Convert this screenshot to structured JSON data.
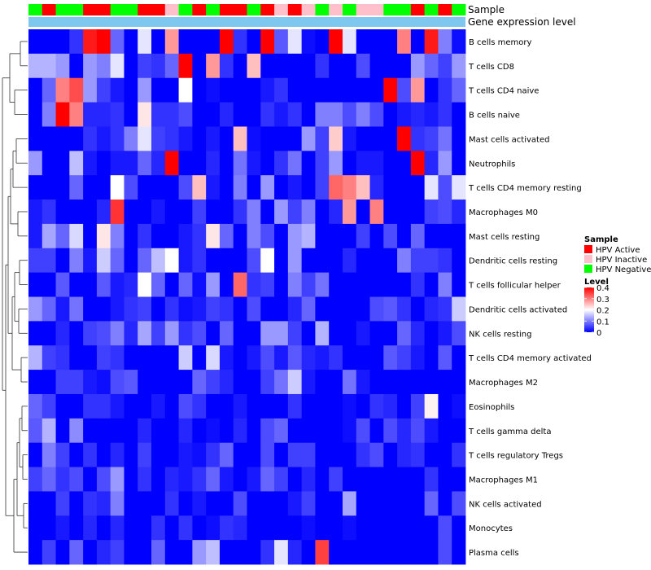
{
  "chart_data": {
    "type": "heatmap",
    "annotation_titles": [
      "Sample",
      "Gene expression level"
    ],
    "sample_legend": {
      "title": "Sample",
      "entries": [
        {
          "label": "HPV Active",
          "color": "#ff0000"
        },
        {
          "label": "HPV Inactive",
          "color": "#ffc0cb"
        },
        {
          "label": "HPV Negative",
          "color": "#00ff00"
        }
      ]
    },
    "level_legend": {
      "title": "Level",
      "ticks": [
        "0.4",
        "0.3",
        "0.2",
        "0.1",
        "0"
      ],
      "range": [
        0,
        0.4
      ],
      "colors": [
        "#0000ff",
        "#ffffff",
        "#ff0000"
      ]
    },
    "sample_groups": [
      "G",
      "R",
      "G",
      "G",
      "R",
      "R",
      "G",
      "G",
      "R",
      "R",
      "P",
      "G",
      "R",
      "G",
      "R",
      "R",
      "G",
      "R",
      "P",
      "R",
      "P",
      "G",
      "P",
      "G",
      "P",
      "P",
      "G",
      "G",
      "R",
      "G",
      "R",
      "G"
    ],
    "group_colors": {
      "R": "#ff0000",
      "P": "#ffc0cb",
      "G": "#00ff00"
    },
    "annotation_bar_color": "#7ec8f0",
    "cell_types": [
      "B cells memory",
      "T cells CD8",
      "T cells CD4 naive",
      "B cells naive",
      "Mast cells activated",
      "Neutrophils",
      "T cells CD4 memory resting",
      "Macrophages M0",
      "Mast cells resting",
      "Dendritic cells resting",
      "T cells follicular helper",
      "Dendritic cells activated",
      "NK cells resting",
      "T cells CD4 memory activated",
      "Macrophages M2",
      "Eosinophils",
      "T cells gamma delta",
      "T cells regulatory  Tregs",
      "Macrophages M1",
      "NK cells activated",
      "Monocytes",
      "Plasma cells"
    ],
    "values": [
      [
        0,
        0,
        0,
        0.04,
        0.38,
        0.4,
        0.08,
        0,
        0.18,
        0,
        0.28,
        0,
        0,
        0,
        0.4,
        0.04,
        0,
        0.4,
        0.07,
        0.18,
        0.01,
        0,
        0.4,
        0.18,
        0,
        0,
        0,
        0.3,
        0,
        0.38,
        0.1,
        0.01
      ],
      [
        0.14,
        0.14,
        0.12,
        0,
        0.12,
        0.1,
        0.18,
        0,
        0.05,
        0.04,
        0.08,
        0.4,
        0,
        0.28,
        0.04,
        0,
        0.25,
        0,
        0,
        0,
        0,
        0.04,
        0,
        0,
        0.06,
        0,
        0,
        0,
        0.12,
        0.08,
        0.05,
        0.12
      ],
      [
        0,
        0.08,
        0.3,
        0.34,
        0.12,
        0.05,
        0.02,
        0,
        0.12,
        0,
        0,
        0.2,
        0,
        0.01,
        0,
        0,
        0,
        0.02,
        0.04,
        0,
        0,
        0,
        0,
        0,
        0,
        0,
        0.4,
        0.06,
        0.28,
        0,
        0.04,
        0.08
      ],
      [
        0,
        0.1,
        0.4,
        0.3,
        0.03,
        0.03,
        0.04,
        0,
        0.22,
        0.04,
        0.04,
        0.06,
        0,
        0,
        0.03,
        0,
        0,
        0.04,
        0.02,
        0.04,
        0,
        0.1,
        0.1,
        0.06,
        0.1,
        0.06,
        0,
        0.02,
        0.03,
        0.02,
        0.04,
        0
      ],
      [
        0,
        0,
        0,
        0,
        0.04,
        0.02,
        0.04,
        0.1,
        0.18,
        0.05,
        0.04,
        0.02,
        0,
        0.02,
        0,
        0.25,
        0.01,
        0,
        0,
        0,
        0.12,
        0.05,
        0.24,
        0.02,
        0,
        0,
        0,
        0.4,
        0.04,
        0.05,
        0.09,
        0
      ],
      [
        0.12,
        0,
        0,
        0.15,
        0.02,
        0,
        0.02,
        0.02,
        0.08,
        0.03,
        0.4,
        0,
        0,
        0.03,
        0,
        0.09,
        0.02,
        0,
        0.04,
        0.09,
        0,
        0.05,
        0.12,
        0,
        0.02,
        0.02,
        0,
        0,
        0.4,
        0.03,
        0.12,
        0
      ],
      [
        0,
        0,
        0,
        0.08,
        0,
        0,
        0.2,
        0.06,
        0,
        0,
        0,
        0.06,
        0.25,
        0.02,
        0,
        0.1,
        0,
        0.12,
        0,
        0.02,
        0,
        0.05,
        0.32,
        0.3,
        0.25,
        0.03,
        0,
        0,
        0,
        0.18,
        0.06,
        0.18
      ],
      [
        0.02,
        0.04,
        0,
        0,
        0,
        0.03,
        0.36,
        0,
        0,
        0.02,
        0,
        0,
        0.05,
        0,
        0,
        0.04,
        0.1,
        0,
        0.12,
        0.05,
        0.1,
        0,
        0.03,
        0.28,
        0,
        0.3,
        0,
        0,
        0,
        0.05,
        0.06,
        0.03
      ],
      [
        0.02,
        0.13,
        0.08,
        0.17,
        0,
        0.22,
        0.1,
        0,
        0.04,
        0,
        0,
        0.02,
        0.04,
        0.22,
        0.08,
        0,
        0.1,
        0.06,
        0,
        0.12,
        0.14,
        0,
        0,
        0,
        0.05,
        0,
        0.06,
        0,
        0.08,
        0,
        0,
        0
      ],
      [
        0.05,
        0.05,
        0,
        0.1,
        0.02,
        0.16,
        0.08,
        0,
        0.08,
        0.15,
        0.2,
        0.02,
        0.04,
        0,
        0,
        0,
        0.06,
        0.2,
        0,
        0.12,
        0,
        0,
        0,
        0.03,
        0,
        0,
        0,
        0.1,
        0.05,
        0.05,
        0.04,
        0
      ],
      [
        0,
        0,
        0.07,
        0,
        0,
        0.07,
        0.02,
        0.03,
        0.2,
        0.08,
        0,
        0.08,
        0.01,
        0.12,
        0,
        0.32,
        0.04,
        0.05,
        0,
        0.1,
        0.05,
        0.09,
        0,
        0,
        0,
        0,
        0,
        0,
        0.04,
        0,
        0.1,
        0
      ],
      [
        0.12,
        0.08,
        0.02,
        0.09,
        0,
        0,
        0.02,
        0.04,
        0.05,
        0,
        0.04,
        0.01,
        0.02,
        0.05,
        0.04,
        0,
        0.06,
        0,
        0,
        0.03,
        0.08,
        0,
        0,
        0,
        0,
        0.06,
        0.07,
        0.04,
        0,
        0.03,
        0.04,
        0.16
      ],
      [
        0,
        0,
        0.03,
        0,
        0.05,
        0.06,
        0.1,
        0.03,
        0.13,
        0.05,
        0.12,
        0.04,
        0.06,
        0,
        0.08,
        0,
        0,
        0.12,
        0.12,
        0.05,
        0,
        0.14,
        0,
        0,
        0.02,
        0,
        0,
        0.08,
        0.03,
        0,
        0.02,
        0.06
      ],
      [
        0.14,
        0.05,
        0.04,
        0,
        0,
        0.05,
        0.04,
        0,
        0,
        0,
        0,
        0.16,
        0,
        0.17,
        0.02,
        0,
        0.02,
        0.06,
        0.02,
        0.07,
        0.03,
        0.02,
        0.04,
        0,
        0,
        0,
        0.07,
        0.05,
        0.02,
        0,
        0.07,
        0
      ],
      [
        0,
        0,
        0.05,
        0.05,
        0.02,
        0.01,
        0.06,
        0.07,
        0,
        0,
        0,
        0,
        0.08,
        0.05,
        0.03,
        0,
        0,
        0.05,
        0.09,
        0.16,
        0.02,
        0,
        0,
        0.09,
        0.02,
        0,
        0,
        0,
        0,
        0,
        0,
        0
      ],
      [
        0.08,
        0.05,
        0,
        0,
        0.04,
        0.04,
        0.02,
        0,
        0,
        0.02,
        0,
        0.06,
        0.04,
        0,
        0,
        0.02,
        0,
        0,
        0,
        0.04,
        0,
        0,
        0,
        0.01,
        0,
        0.04,
        0.03,
        0,
        0.05,
        0.21,
        0,
        0.01
      ],
      [
        0.07,
        0.14,
        0,
        0.11,
        0,
        0,
        0,
        0,
        0.03,
        0,
        0,
        0.03,
        0,
        0.01,
        0,
        0.03,
        0,
        0.06,
        0.08,
        0,
        0,
        0,
        0,
        0.01,
        0.06,
        0,
        0.06,
        0.03,
        0.06,
        0.02,
        0,
        0
      ],
      [
        0,
        0.1,
        0.05,
        0,
        0.04,
        0,
        0.03,
        0,
        0.05,
        0,
        0,
        0.02,
        0.01,
        0.04,
        0.08,
        0,
        0,
        0.06,
        0,
        0.05,
        0.05,
        0,
        0,
        0,
        0.04,
        0.06,
        0,
        0.03,
        0.04,
        0,
        0,
        0.04
      ],
      [
        0.05,
        0.08,
        0.04,
        0.06,
        0,
        0.06,
        0.12,
        0,
        0.04,
        0,
        0.03,
        0.02,
        0.04,
        0.08,
        0.02,
        0,
        0.02,
        0.08,
        0.05,
        0,
        0.03,
        0,
        0.05,
        0,
        0,
        0,
        0,
        0,
        0,
        0.04,
        0,
        0
      ],
      [
        0,
        0,
        0.05,
        0,
        0.04,
        0.03,
        0.1,
        0,
        0,
        0,
        0.04,
        0,
        0.02,
        0,
        0,
        0.06,
        0,
        0,
        0,
        0.02,
        0.05,
        0,
        0,
        0.13,
        0,
        0,
        0,
        0,
        0,
        0.08,
        0,
        0.06
      ],
      [
        0,
        0,
        0.02,
        0,
        0.03,
        0,
        0.03,
        0,
        0,
        0.04,
        0,
        0.04,
        0,
        0.01,
        0.04,
        0.03,
        0,
        0,
        0,
        0,
        0.01,
        0,
        0,
        0.01,
        0,
        0,
        0,
        0,
        0,
        0,
        0.06,
        0
      ],
      [
        0,
        0.05,
        0,
        0.08,
        0,
        0.03,
        0.05,
        0,
        0,
        0.08,
        0,
        0,
        0.12,
        0.15,
        0,
        0,
        0,
        0.04,
        0.18,
        0.03,
        0,
        0.35,
        0,
        0,
        0,
        0,
        0,
        0,
        0,
        0,
        0.06,
        0
      ]
    ]
  }
}
